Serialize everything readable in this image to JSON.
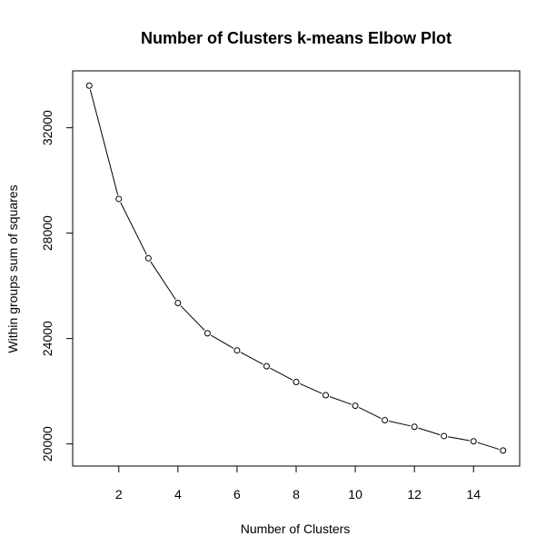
{
  "chart_data": {
    "type": "line",
    "title": "Number of Clusters k-means Elbow Plot",
    "xlabel": "Number of Clusters",
    "ylabel": "Within groups sum of squares",
    "xlim": [
      0.44,
      15.56
    ],
    "ylim": [
      19160,
      34160
    ],
    "xticks": [
      2,
      4,
      6,
      8,
      10,
      12,
      14
    ],
    "yticks": [
      20000,
      24000,
      28000,
      32000
    ],
    "x": [
      1,
      2,
      3,
      4,
      5,
      6,
      7,
      8,
      9,
      10,
      11,
      12,
      13,
      14,
      15
    ],
    "y": [
      33600,
      29300,
      27050,
      25350,
      24200,
      23550,
      22950,
      22350,
      21850,
      21450,
      20900,
      20650,
      20300,
      20100,
      19750
    ],
    "line_color": "#000000",
    "marker": "open-circle",
    "grid": false
  }
}
